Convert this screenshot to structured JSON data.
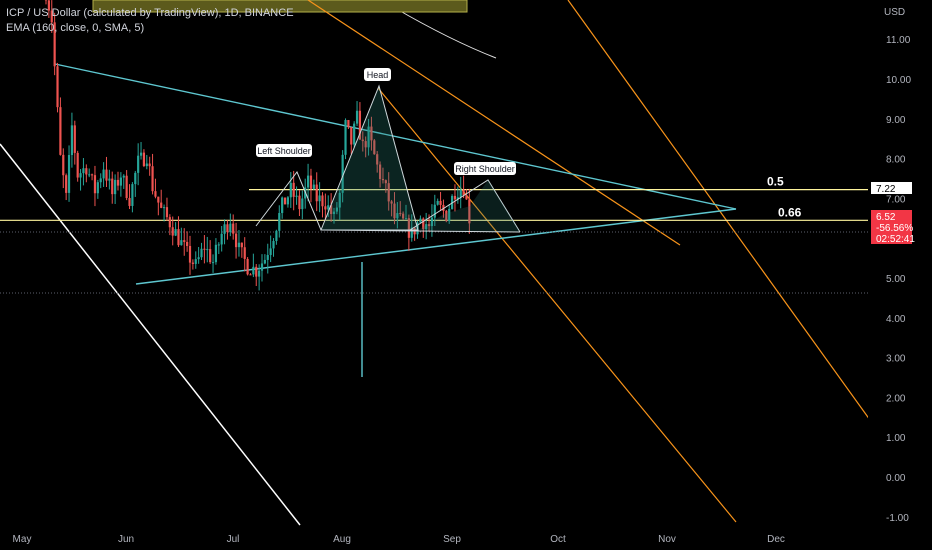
{
  "header": {
    "title": "ICP / US Dollar (calculated by TradingView), 1D, BINANCE",
    "indicator": "EMA (160, close, 0, SMA, 5)"
  },
  "chart_data": {
    "type": "candlestick",
    "currency_label": "USD",
    "y_ticks": [
      11.0,
      10.0,
      9.0,
      8.0,
      7.0,
      6.0,
      5.0,
      4.0,
      3.0,
      2.0,
      1.0,
      0.0,
      -1.0
    ],
    "x_ticks": [
      "May",
      "Jun",
      "Jul",
      "Aug",
      "Sep",
      "Oct",
      "Nov",
      "Dec"
    ],
    "ylim": [
      -1.2,
      11.8
    ],
    "grid": false,
    "price_badges": [
      {
        "id": "level-0.5",
        "value": "7.22",
        "bg": "#ffffff",
        "fg": "#000000"
      },
      {
        "id": "last-price",
        "value": "6.52",
        "bg": "#f23645",
        "fg": "#ffffff"
      },
      {
        "id": "change",
        "value": "-56.56%",
        "bg": "#f23645",
        "fg": "#ffffff"
      },
      {
        "id": "countdown",
        "value": "02:52:41",
        "bg": "#f23645",
        "fg": "#ffffff"
      }
    ],
    "fib_levels": [
      {
        "label": "0.5",
        "value": 7.22
      },
      {
        "label": "0.66",
        "value": 6.45
      }
    ],
    "annotations": [
      "Left Shoulder",
      "Head",
      "Right Shoulder"
    ],
    "colors": {
      "up": "#26a69a",
      "down": "#ef5350",
      "triangle": "#5ec7d0",
      "channel": "#f7931a",
      "ema": "#e0e0e0",
      "fib": "#fff59d"
    },
    "candles_source": "approximate path: [date_index, close]",
    "path": [
      [
        0,
        12.2
      ],
      [
        2,
        11.5
      ],
      [
        3,
        10.3
      ],
      [
        5,
        8.0
      ],
      [
        7,
        7.0
      ],
      [
        9,
        8.8
      ],
      [
        11,
        7.6
      ],
      [
        14,
        7.8
      ],
      [
        17,
        7.2
      ],
      [
        20,
        7.8
      ],
      [
        23,
        7.1
      ],
      [
        26,
        7.6
      ],
      [
        29,
        7.0
      ],
      [
        32,
        7.9
      ],
      [
        35,
        8.1
      ],
      [
        37,
        7.3
      ],
      [
        40,
        6.7
      ],
      [
        43,
        6.4
      ],
      [
        46,
        6.0
      ],
      [
        49,
        5.6
      ],
      [
        52,
        5.3
      ],
      [
        55,
        5.8
      ],
      [
        58,
        5.4
      ],
      [
        61,
        6.1
      ],
      [
        64,
        6.5
      ],
      [
        67,
        5.7
      ],
      [
        70,
        5.3
      ],
      [
        73,
        5.2
      ],
      [
        76,
        5.5
      ],
      [
        79,
        6.1
      ],
      [
        82,
        6.8
      ],
      [
        85,
        7.2
      ],
      [
        88,
        6.8
      ],
      [
        91,
        7.4
      ],
      [
        94,
        7.0
      ],
      [
        97,
        6.9
      ],
      [
        100,
        6.5
      ],
      [
        102,
        7.1
      ],
      [
        104,
        8.8
      ],
      [
        106,
        8.4
      ],
      [
        108,
        9.0
      ],
      [
        110,
        8.3
      ],
      [
        112,
        8.6
      ],
      [
        115,
        7.8
      ],
      [
        118,
        7.2
      ],
      [
        121,
        6.5
      ],
      [
        124,
        6.4
      ],
      [
        127,
        6.1
      ],
      [
        130,
        6.5
      ],
      [
        133,
        6.3
      ],
      [
        136,
        6.8
      ],
      [
        139,
        6.6
      ],
      [
        142,
        7.2
      ],
      [
        145,
        7.3
      ],
      [
        147,
        6.52
      ]
    ]
  }
}
